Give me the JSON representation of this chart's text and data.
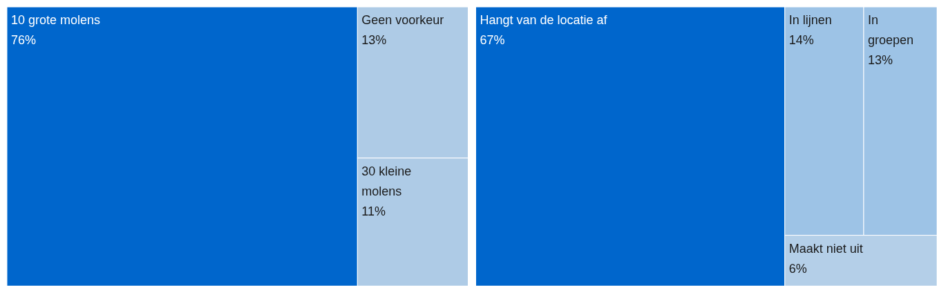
{
  "chart_data": [
    {
      "type": "other",
      "categories": [
        "10 grote molens",
        "Geen voorkeur",
        "30 kleine molens"
      ],
      "values": [
        76,
        13,
        11
      ],
      "value_labels": [
        "76%",
        "13%",
        "11%"
      ],
      "colors": [
        "#0066cc",
        "#aecbe6",
        "#aecbe6"
      ]
    },
    {
      "type": "other",
      "categories": [
        "Hangt van de locatie af",
        "In lijnen",
        "In groepen",
        "Maakt niet uit"
      ],
      "values": [
        67,
        14,
        13,
        6
      ],
      "value_labels": [
        "67%",
        "14%",
        "13%",
        "6%"
      ],
      "colors": [
        "#0066cc",
        "#9dc3e6",
        "#9dc3e6",
        "#b4cfe8"
      ]
    }
  ]
}
